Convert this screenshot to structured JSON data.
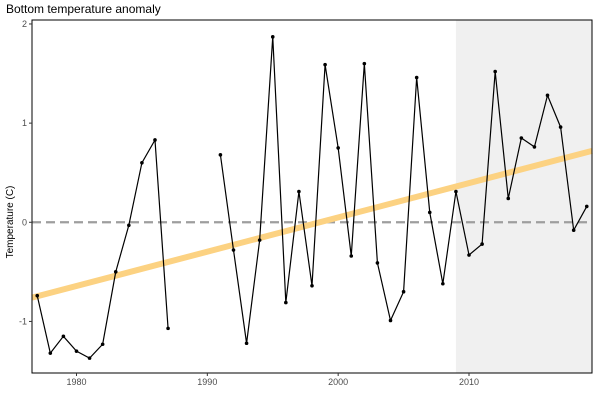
{
  "chart_data": {
    "type": "line",
    "title": "Bottom temperature anomaly",
    "xlabel": "",
    "ylabel": "Temperature (C)",
    "xlim": [
      1976.6,
      2019.4
    ],
    "ylim": [
      -1.52,
      2.04
    ],
    "x_ticks": [
      1980,
      1990,
      2000,
      2010
    ],
    "y_ticks": [
      -1,
      0,
      1,
      2
    ],
    "grid": false,
    "legend": "none",
    "highlight_range": {
      "x": [
        2009,
        2019.4
      ],
      "color": "#f0f0f0"
    },
    "reference_line": {
      "y": 0,
      "style": "dashed",
      "color": "#9e9e9e"
    },
    "trend_line": {
      "x": [
        1976.6,
        2019.4
      ],
      "y": [
        -0.76,
        0.72
      ],
      "color": "#fcd282"
    },
    "series": [
      {
        "color": "#000000",
        "x": [
          1977,
          1978,
          1979,
          1980,
          1981,
          1982,
          1983,
          1984,
          1985,
          1986,
          1987,
          1988,
          1989,
          1990,
          1991,
          1992,
          1993,
          1994,
          1995,
          1996,
          1997,
          1998,
          1999,
          2000,
          2001,
          2002,
          2003,
          2004,
          2005,
          2006,
          2007,
          2008,
          2009,
          2010,
          2011,
          2012,
          2013,
          2014,
          2015,
          2016,
          2017,
          2018,
          2019
        ],
        "y": [
          -0.74,
          -1.32,
          -1.15,
          -1.3,
          -1.37,
          -1.23,
          -0.5,
          -0.03,
          0.6,
          0.83,
          -1.07,
          null,
          null,
          null,
          0.68,
          -0.28,
          -1.22,
          -0.18,
          1.87,
          -0.81,
          0.31,
          -0.64,
          1.59,
          0.75,
          -0.34,
          1.6,
          -0.41,
          -0.99,
          -0.7,
          1.46,
          0.1,
          -0.62,
          0.31,
          -0.33,
          -0.22,
          1.52,
          0.24,
          0.85,
          0.76,
          1.28,
          0.96,
          -0.08,
          0.16
        ]
      }
    ]
  }
}
